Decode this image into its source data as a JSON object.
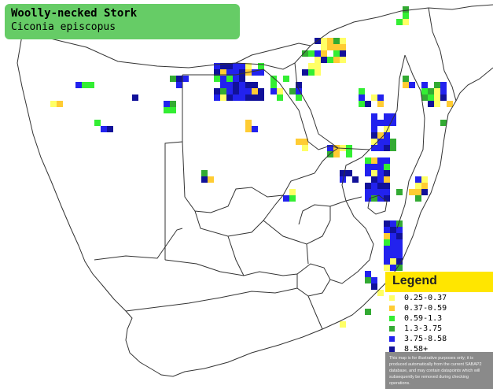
{
  "species": {
    "common_name": "Woolly-necked Stork",
    "scientific_name": "Ciconia episcopus"
  },
  "legend": {
    "title": "Legend",
    "items": [
      {
        "label": "0.25-0.37",
        "color": "#ffff66"
      },
      {
        "label": "0.37-0.59",
        "color": "#ffcc33"
      },
      {
        "label": "0.59-1.3",
        "color": "#33ee33"
      },
      {
        "label": "1.3-3.75",
        "color": "#33aa33"
      },
      {
        "label": "3.75-8.58",
        "color": "#2222ee"
      },
      {
        "label": "8.58+",
        "color": "#111199"
      }
    ],
    "disclaimer": "This map is for illustrative purposes only; it is produced automatically from the current SABAP2 database, and may contain datapoints which will subsequently be removed during checking operations."
  },
  "colors": {
    "title_background": "#66cc66",
    "legend_header": "#ffe600",
    "disclaimer_background": "#8a8a8a",
    "borders": "#333333"
  }
}
